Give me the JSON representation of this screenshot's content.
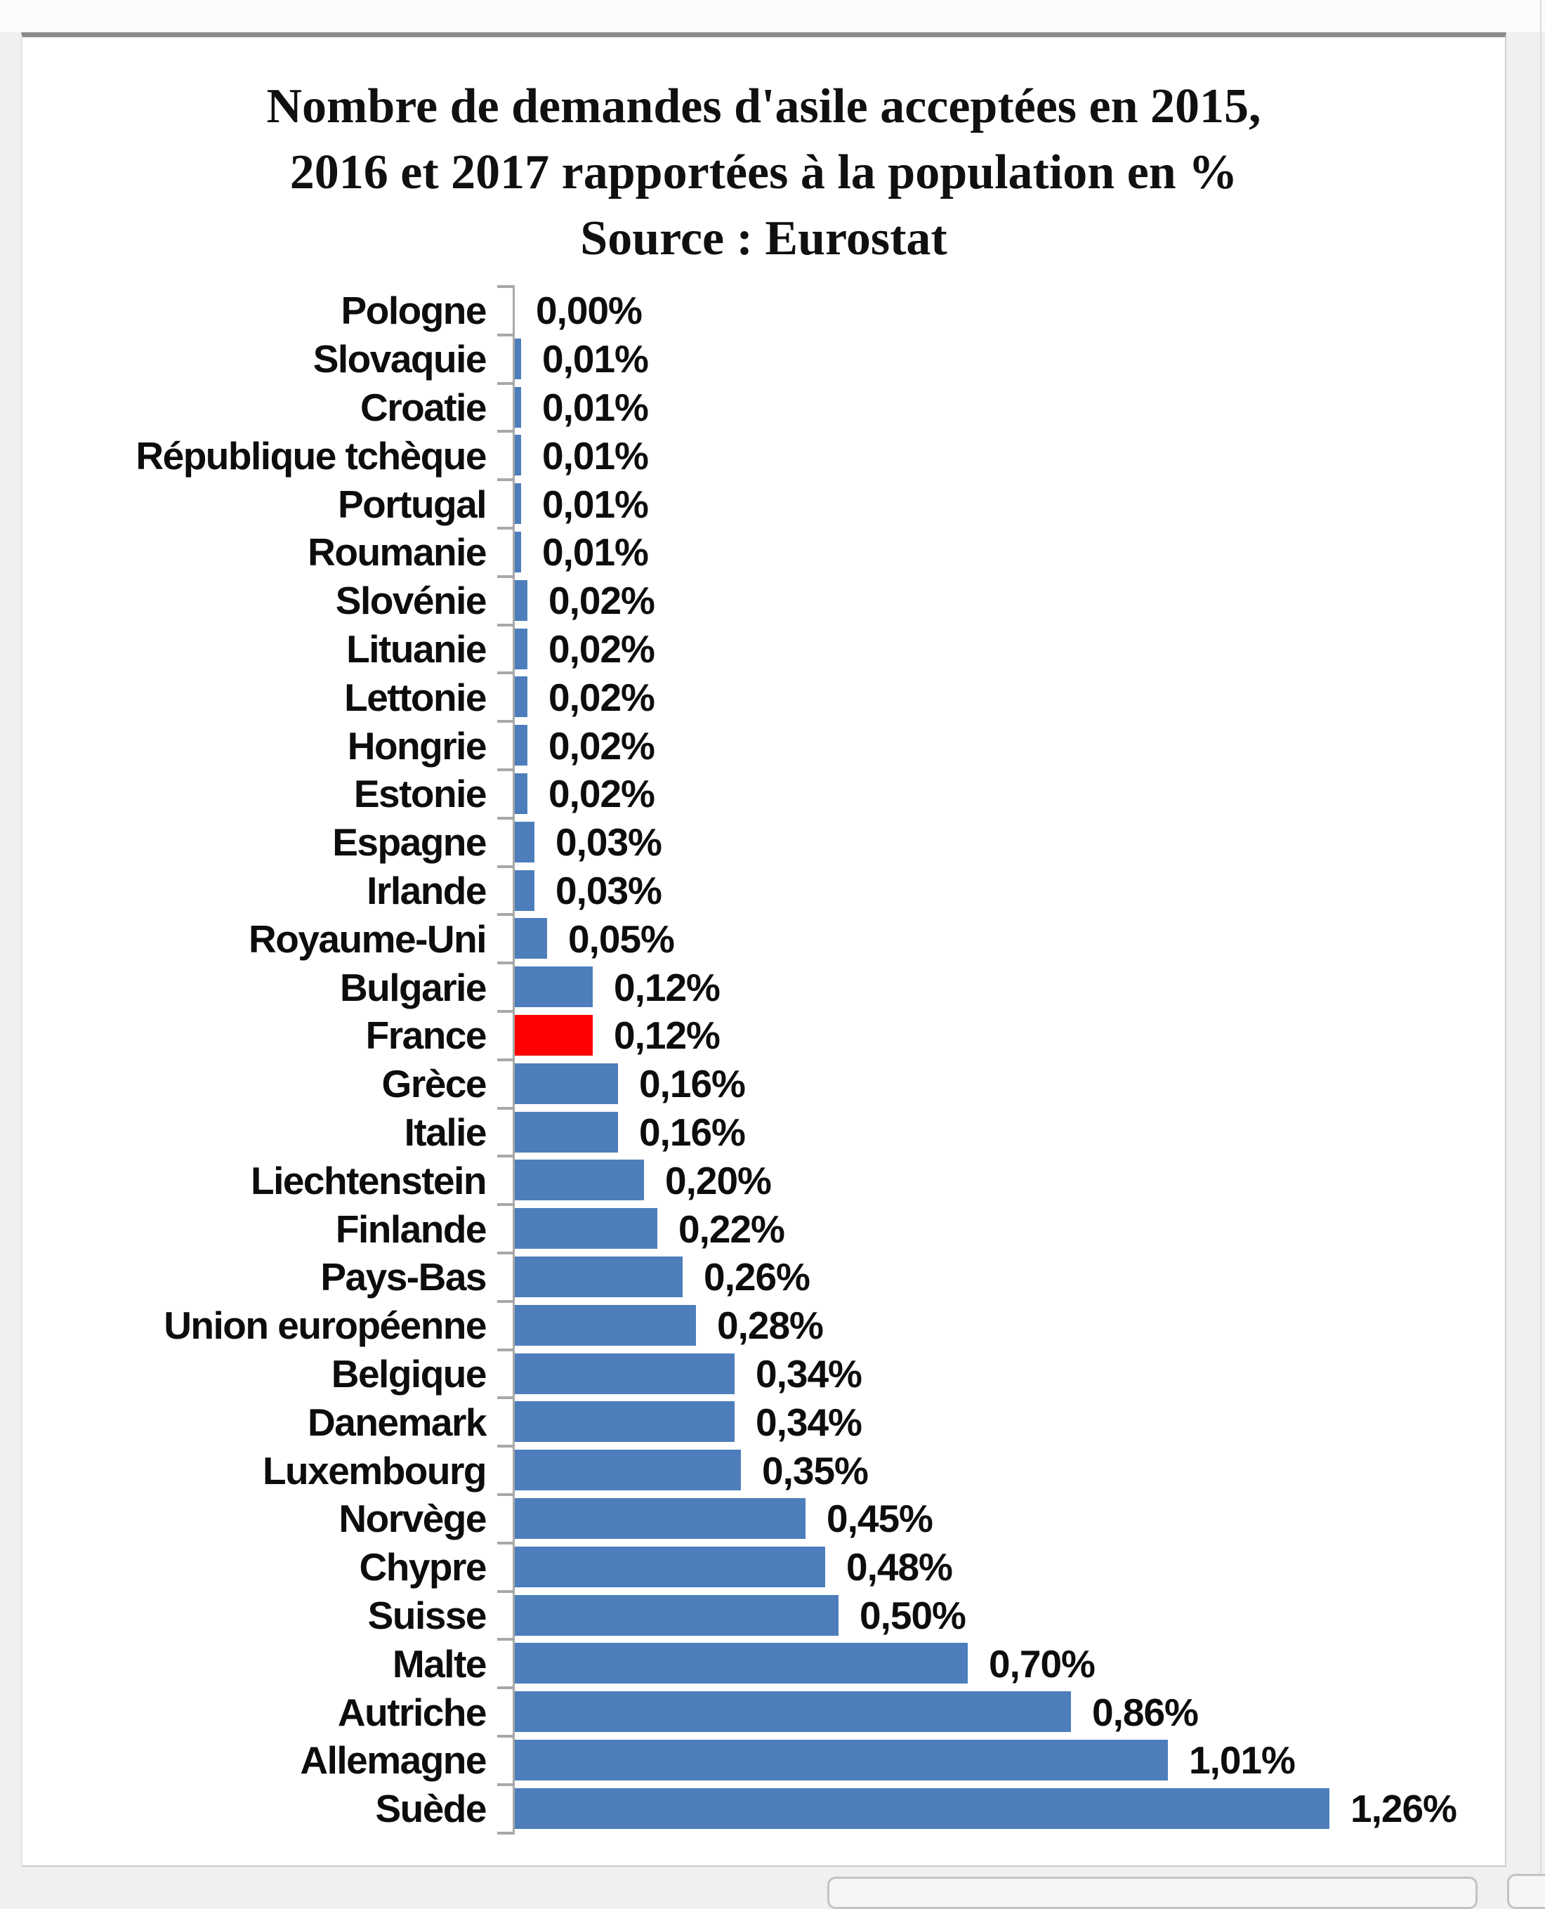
{
  "chart_data": {
    "type": "bar",
    "orientation": "horizontal",
    "title_lines": [
      "Nombre de demandes d'asile acceptées en 2015,",
      "2016 et 2017 rapportées à la population en %",
      "Source : Eurostat"
    ],
    "categories": [
      "Pologne",
      "Slovaquie",
      "Croatie",
      "République tchèque",
      "Portugal",
      "Roumanie",
      "Slovénie",
      "Lituanie",
      "Lettonie",
      "Hongrie",
      "Estonie",
      "Espagne",
      "Irlande",
      "Royaume-Uni",
      "Bulgarie",
      "France",
      "Grèce",
      "Italie",
      "Liechtenstein",
      "Finlande",
      "Pays-Bas",
      "Union européenne",
      "Belgique",
      "Danemark",
      "Luxembourg",
      "Norvège",
      "Chypre",
      "Suisse",
      "Malte",
      "Autriche",
      "Allemagne",
      "Suède"
    ],
    "values": [
      0.0,
      0.01,
      0.01,
      0.01,
      0.01,
      0.01,
      0.02,
      0.02,
      0.02,
      0.02,
      0.02,
      0.03,
      0.03,
      0.05,
      0.12,
      0.12,
      0.16,
      0.16,
      0.2,
      0.22,
      0.26,
      0.28,
      0.34,
      0.34,
      0.35,
      0.45,
      0.48,
      0.5,
      0.7,
      0.86,
      1.01,
      1.26
    ],
    "display_values": [
      "0,00%",
      "0,01%",
      "0,01%",
      "0,01%",
      "0,01%",
      "0,01%",
      "0,02%",
      "0,02%",
      "0,02%",
      "0,02%",
      "0,02%",
      "0,03%",
      "0,03%",
      "0,05%",
      "0,12%",
      "0,12%",
      "0,16%",
      "0,16%",
      "0,20%",
      "0,22%",
      "0,26%",
      "0,28%",
      "0,34%",
      "0,34%",
      "0,35%",
      "0,45%",
      "0,48%",
      "0,50%",
      "0,70%",
      "0,86%",
      "1,01%",
      "1,26%"
    ],
    "highlight_category": "France",
    "bar_color": "#4d7ebb",
    "highlight_color": "#fe0000",
    "xlim": [
      0,
      1.26
    ],
    "grid": false,
    "legend": "none",
    "value_labels": "end-of-bar"
  }
}
